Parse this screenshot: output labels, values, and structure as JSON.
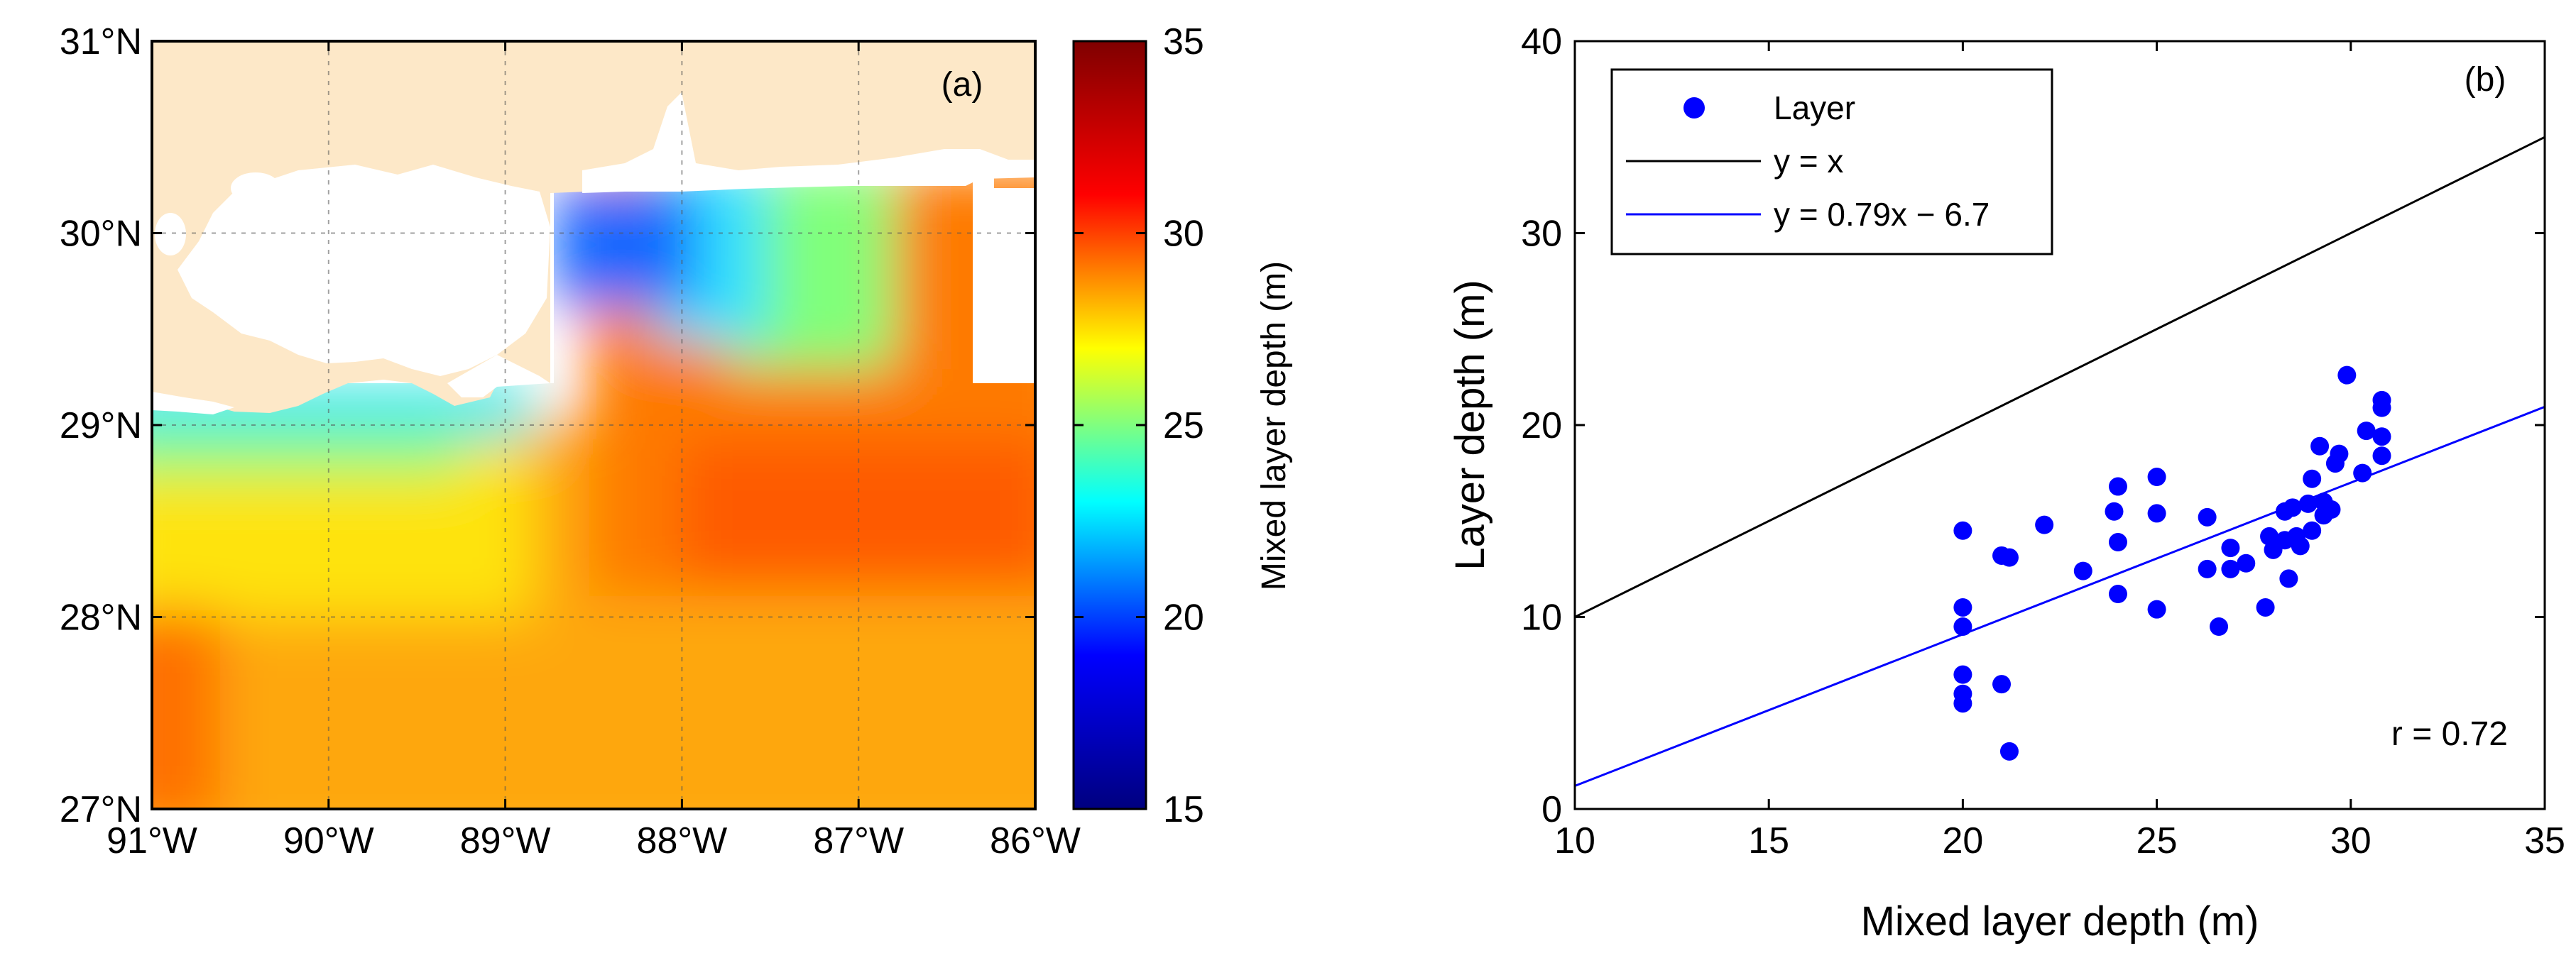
{
  "chart_data": [
    {
      "type": "heatmap",
      "panel_label": "(a)",
      "x_ticks": [
        "91°W",
        "90°W",
        "89°W",
        "88°W",
        "87°W",
        "86°W"
      ],
      "y_ticks": [
        "27°N",
        "28°N",
        "29°N",
        "30°N",
        "31°N"
      ],
      "xlim": [
        -91,
        -86
      ],
      "ylim": [
        27,
        31
      ],
      "grid": true,
      "colorbar": {
        "label": "Mixed layer depth (m)",
        "ticks": [
          "15",
          "20",
          "25",
          "30",
          "35"
        ],
        "range": [
          15,
          35
        ],
        "colormap": [
          "#00007f",
          "#0000ff",
          "#00ffff",
          "#ffff00",
          "#ff0000",
          "#7f0000"
        ]
      },
      "land_color": "#fde8c8",
      "field_description_values": {
        "offshore_south": 29,
        "west_shelf": 26.5,
        "east_core_max": 31,
        "mississippi_bight_min": 19,
        "delta_nearshore": 22
      }
    },
    {
      "type": "scatter",
      "panel_label": "(b)",
      "xlabel": "Mixed layer depth (m)",
      "ylabel": "Layer depth (m)",
      "xlim": [
        10,
        35
      ],
      "ylim": [
        0,
        40
      ],
      "x_ticks": [
        "10",
        "15",
        "20",
        "25",
        "30",
        "35"
      ],
      "y_ticks": [
        "0",
        "10",
        "20",
        "30",
        "40"
      ],
      "legend": {
        "position": "top-left",
        "entries": [
          "Layer",
          "y = x",
          "y = 0.79x − 6.7"
        ]
      },
      "annotation": "r = 0.72",
      "series": [
        {
          "name": "Layer",
          "color": "#0000ff",
          "points": [
            [
              20.0,
              14.5
            ],
            [
              20.0,
              10.5
            ],
            [
              20.0,
              9.5
            ],
            [
              20.0,
              7.0
            ],
            [
              20.0,
              6.0
            ],
            [
              20.0,
              5.5
            ],
            [
              21.0,
              13.2
            ],
            [
              21.2,
              13.1
            ],
            [
              21.0,
              6.5
            ],
            [
              21.2,
              3.0
            ],
            [
              22.1,
              14.8
            ],
            [
              23.1,
              12.4
            ],
            [
              23.9,
              15.5
            ],
            [
              24.0,
              16.8
            ],
            [
              24.0,
              13.9
            ],
            [
              24.0,
              11.2
            ],
            [
              25.0,
              17.3
            ],
            [
              25.0,
              15.4
            ],
            [
              25.0,
              10.4
            ],
            [
              26.3,
              15.2
            ],
            [
              26.3,
              12.5
            ],
            [
              26.6,
              9.5
            ],
            [
              26.9,
              13.6
            ],
            [
              26.9,
              12.5
            ],
            [
              27.3,
              12.8
            ],
            [
              27.8,
              10.5
            ],
            [
              27.9,
              14.2
            ],
            [
              28.0,
              13.5
            ],
            [
              28.3,
              15.5
            ],
            [
              28.3,
              14.0
            ],
            [
              28.4,
              12.0
            ],
            [
              28.5,
              15.7
            ],
            [
              28.6,
              14.2
            ],
            [
              28.7,
              13.7
            ],
            [
              28.9,
              15.9
            ],
            [
              29.0,
              17.2
            ],
            [
              29.0,
              14.5
            ],
            [
              29.2,
              18.9
            ],
            [
              29.3,
              16.0
            ],
            [
              29.5,
              15.6
            ],
            [
              29.6,
              18.0
            ],
            [
              29.7,
              18.5
            ],
            [
              29.9,
              22.6
            ],
            [
              30.3,
              17.5
            ],
            [
              30.4,
              19.7
            ],
            [
              30.8,
              21.3
            ],
            [
              30.8,
              20.9
            ],
            [
              30.8,
              19.4
            ],
            [
              30.8,
              18.4
            ],
            [
              29.3,
              15.3
            ]
          ]
        },
        {
          "name": "y = x",
          "color": "#000000",
          "slope": 1,
          "intercept": 0
        },
        {
          "name": "y = 0.79x − 6.7",
          "color": "#0000ff",
          "slope": 0.79,
          "intercept": -6.7
        }
      ]
    }
  ]
}
